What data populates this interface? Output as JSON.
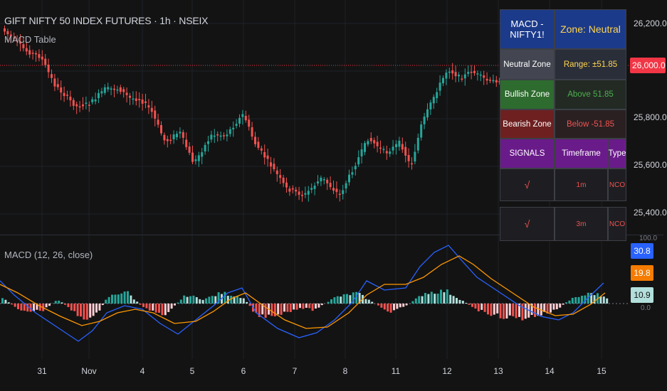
{
  "header": {
    "title": "GIFT NIFTY 50 INDEX FUTURES · 1h · NSEIX",
    "indicator_label": "MACD Table",
    "macd_label": "MACD (12, 26, close)"
  },
  "price_axis": {
    "ticks": [
      "26,200.0",
      "26,000.0",
      "25,800.0",
      "25,600.0",
      "25,400.0"
    ],
    "current_price": "26,000.0",
    "top_clipped": "100.0",
    "zero_clipped": "0.0"
  },
  "macd_badges": {
    "macd": "30.8",
    "signal": "19.8",
    "histogram": "10.9"
  },
  "time_axis": [
    "31",
    "Nov",
    "4",
    "5",
    "6",
    "7",
    "8",
    "11",
    "12",
    "13",
    "14",
    "15"
  ],
  "table": {
    "header_left": "MACD - NIFTY1!",
    "header_right": "Zone: Neutral",
    "rows": [
      {
        "zone": "Neutral Zone",
        "value": "Range: ±51.85"
      },
      {
        "zone": "Bullish Zone",
        "value": "Above 51.85"
      },
      {
        "zone": "Bearish Zone",
        "value": "Below -51.85"
      }
    ],
    "signals_header": [
      "SIGNALS",
      "Timeframe",
      "Type"
    ],
    "signals": [
      {
        "mark": "√",
        "timeframe": "1m",
        "type": "NCO"
      },
      {
        "mark": "√",
        "timeframe": "3m",
        "type": "NCO"
      }
    ]
  },
  "colors": {
    "background": "#131313",
    "up": "#26a69a",
    "down": "#ef5350",
    "macd_line": "#2962ff",
    "signal_line": "#ff9800",
    "price_line": "#f23645",
    "table_header": "#1c3a8a",
    "table_neutral": "#434651",
    "table_bull": "#2e6b2e",
    "table_bear": "#6e2020",
    "table_signals": "#6a1b8a"
  }
}
